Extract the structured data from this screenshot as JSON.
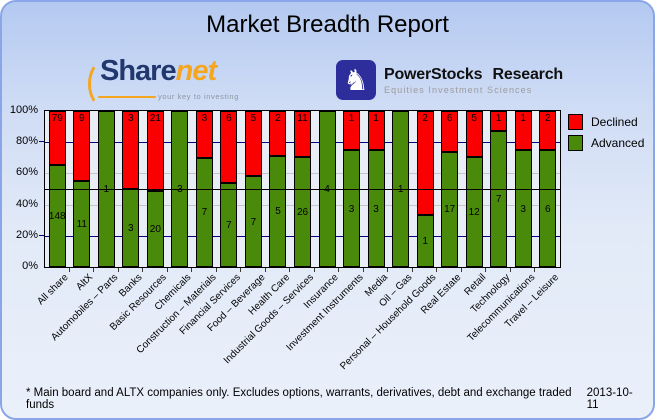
{
  "header": {
    "title": "Market Breadth Report"
  },
  "logos": {
    "sharenet": {
      "text_main": "Share",
      "text_accent": "net",
      "tagline": "your key to investing",
      "color_main": "#21386e",
      "color_accent": "#f5a61f"
    },
    "powerstocks": {
      "icon": "knight-chess-icon",
      "icon_glyph": "♞",
      "icon_bg": "#2d2d9c",
      "title": "PowerStocks Research",
      "subtitle": "Equities Investment Sciences"
    }
  },
  "chart_data": {
    "type": "bar",
    "variant": "stacked-percent-column",
    "title": "Market Breadth Report",
    "categories": [
      "All share",
      "AltX",
      "Automobiles – Parts",
      "Banks",
      "Basic Resources",
      "Chemicals",
      "Construction – Materials",
      "Financial Services",
      "Food – Beverage",
      "Health Care",
      "Industrial Goods – Services",
      "Insurance",
      "Investment Instruments",
      "Media",
      "Oil – Gas",
      "Personal – Household Goods",
      "Real Estate",
      "Retail",
      "Technology",
      "Telecommunications",
      "Travel – Leisure"
    ],
    "series": [
      {
        "name": "Declined",
        "color": "#fb0000",
        "values": [
          79,
          9,
          0,
          3,
          21,
          0,
          3,
          6,
          5,
          2,
          11,
          0,
          1,
          1,
          0,
          2,
          6,
          5,
          1,
          1,
          2
        ]
      },
      {
        "name": "Advanced",
        "color": "#4a8a0a",
        "values": [
          148,
          11,
          1,
          3,
          20,
          3,
          7,
          7,
          7,
          5,
          26,
          4,
          3,
          3,
          1,
          1,
          17,
          12,
          7,
          3,
          6
        ]
      }
    ],
    "yticks": [
      "100%",
      "80%",
      "60%",
      "40%",
      "20%",
      "0%"
    ],
    "ylim": [
      0,
      100
    ],
    "xlabel": "",
    "ylabel": "",
    "legend_position": "right",
    "grid": {
      "lines": [
        {
          "pct": 80,
          "color": "#000080",
          "tick": true
        },
        {
          "pct": 60,
          "color": "#c6c6c6"
        },
        {
          "pct": 50,
          "color": "#000000",
          "over_bars": true
        },
        {
          "pct": 40,
          "color": "#c6c6c6"
        },
        {
          "pct": 20,
          "color": "#000080",
          "tick": true
        }
      ]
    }
  },
  "footer": {
    "note": "* Main board and ALTX companies only. Excludes options, warrants, derivatives, debt and exchange traded funds",
    "date": "2013-10-11"
  }
}
